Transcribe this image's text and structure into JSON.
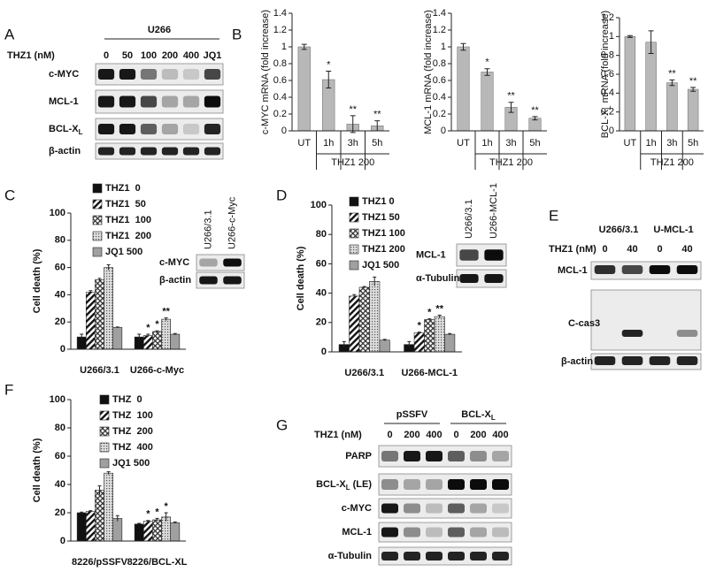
{
  "panel_letters": [
    "A",
    "B",
    "C",
    "D",
    "E",
    "F",
    "G"
  ],
  "chart_data": [
    {
      "type": "bar",
      "ylabel": "c-MYC mRNA (fold increase)",
      "categories": [
        "UT",
        "1h",
        "3h",
        "5h"
      ],
      "group_label": "THZ1 200",
      "values": [
        1.0,
        0.61,
        0.08,
        0.06
      ],
      "errors": [
        0.03,
        0.1,
        0.1,
        0.06
      ],
      "annotations": [
        null,
        "*",
        "**",
        "**"
      ],
      "color": "#b8b8b8",
      "ylim": [
        0,
        1.4
      ],
      "yticks": [
        0,
        0.2,
        0.4,
        0.6,
        0.8,
        1,
        1.2,
        1.4
      ]
    },
    {
      "type": "bar",
      "ylabel": "MCL-1 mRNA (fold increase)",
      "categories": [
        "UT",
        "1h",
        "3h",
        "5h"
      ],
      "group_label": "THZ1 200",
      "values": [
        1.0,
        0.7,
        0.28,
        0.15
      ],
      "errors": [
        0.04,
        0.04,
        0.06,
        0.02
      ],
      "annotations": [
        null,
        "*",
        "**",
        "**"
      ],
      "color": "#b8b8b8",
      "ylim": [
        0,
        1.4
      ],
      "yticks": [
        0,
        0.2,
        0.4,
        0.6,
        0.8,
        1,
        1.2,
        1.4
      ]
    },
    {
      "type": "bar",
      "ylabel": [
        {
          "text": "BCL-X"
        },
        {
          "text": "L",
          "sub": true
        },
        {
          "text": " mRNA (fold increase)"
        }
      ],
      "categories": [
        "UT",
        "1h",
        "3h",
        "5h"
      ],
      "group_label": "THZ1 200",
      "values": [
        1.0,
        0.94,
        0.51,
        0.44
      ],
      "errors": [
        0.01,
        0.12,
        0.03,
        0.02
      ],
      "annotations": [
        null,
        null,
        "**",
        "**"
      ],
      "color": "#b8b8b8",
      "ylim": [
        0,
        1.2
      ],
      "yticks": [
        0,
        0.2,
        0.4,
        0.6,
        0.8,
        1,
        1.2
      ]
    },
    {
      "type": "grouped_bar",
      "ylabel": "Cell death (%)",
      "categories": [
        "U266/3.1",
        "U266-c-Myc"
      ],
      "series": [
        {
          "name": "THZ1  0",
          "pattern": "solid",
          "color": "#111111",
          "values": [
            9,
            9
          ],
          "errors": [
            2,
            2
          ],
          "annotations": [
            null,
            null
          ]
        },
        {
          "name": "THZ1  50",
          "pattern": "diagonal",
          "color": "#111111",
          "values": [
            42,
            10
          ],
          "errors": [
            1,
            1
          ],
          "annotations": [
            null,
            "*"
          ]
        },
        {
          "name": "THZ1  100",
          "pattern": "cross",
          "color": "#333333",
          "values": [
            51,
            13
          ],
          "errors": [
            1,
            0.5
          ],
          "annotations": [
            null,
            "*"
          ]
        },
        {
          "name": "THZ1  200",
          "pattern": "dots",
          "color": "#555555",
          "values": [
            60,
            22
          ],
          "errors": [
            2,
            1
          ],
          "annotations": [
            null,
            "**"
          ]
        },
        {
          "name": "JQ1 500",
          "pattern": "solid",
          "color": "#a0a0a0",
          "values": [
            16,
            11
          ],
          "errors": [
            0.3,
            0.5
          ],
          "annotations": [
            null,
            null
          ]
        }
      ],
      "ylim": [
        0,
        100
      ],
      "yticks": [
        0,
        20,
        40,
        60,
        80,
        100
      ]
    },
    {
      "type": "grouped_bar",
      "ylabel": "Cell death (%)",
      "categories": [
        "U266/3.1",
        "U266-MCL-1"
      ],
      "series": [
        {
          "name": "THZ1 0",
          "pattern": "solid",
          "color": "#111111",
          "values": [
            5,
            5
          ],
          "errors": [
            2,
            2
          ],
          "annotations": [
            null,
            null
          ]
        },
        {
          "name": "THZ1 50",
          "pattern": "diagonal",
          "color": "#111111",
          "values": [
            38,
            13
          ],
          "errors": [
            1,
            0.5
          ],
          "annotations": [
            null,
            "*"
          ]
        },
        {
          "name": "THZ1 100",
          "pattern": "cross",
          "color": "#333333",
          "values": [
            44,
            22
          ],
          "errors": [
            0.5,
            0.5
          ],
          "annotations": [
            null,
            "*"
          ]
        },
        {
          "name": "THZ1 200",
          "pattern": "dots",
          "color": "#555555",
          "values": [
            48,
            24
          ],
          "errors": [
            3,
            1
          ],
          "annotations": [
            null,
            "**"
          ]
        },
        {
          "name": "JQ1 500",
          "pattern": "solid",
          "color": "#a0a0a0",
          "values": [
            8,
            12
          ],
          "errors": [
            0.5,
            0.5
          ],
          "annotations": [
            null,
            null
          ]
        }
      ],
      "ylim": [
        0,
        100
      ],
      "yticks": [
        0,
        20,
        40,
        60,
        80,
        100
      ]
    },
    {
      "type": "grouped_bar",
      "ylabel": "Cell death (%)",
      "categories": [
        "8226/pSSFV",
        "8226/BCL-XL"
      ],
      "series": [
        {
          "name": "THZ  0",
          "pattern": "solid",
          "color": "#111111",
          "values": [
            20,
            12
          ],
          "errors": [
            0.5,
            0.5
          ],
          "annotations": [
            null,
            null
          ]
        },
        {
          "name": "THZ  100",
          "pattern": "diagonal",
          "color": "#111111",
          "values": [
            21,
            14
          ],
          "errors": [
            0.5,
            0.5
          ],
          "annotations": [
            null,
            "*"
          ]
        },
        {
          "name": "THZ  200",
          "pattern": "cross",
          "color": "#333333",
          "values": [
            36,
            15
          ],
          "errors": [
            3,
            1
          ],
          "annotations": [
            null,
            "*"
          ]
        },
        {
          "name": "THZ  400",
          "pattern": "dots",
          "color": "#555555",
          "values": [
            48,
            17
          ],
          "errors": [
            1,
            3
          ],
          "annotations": [
            null,
            "*"
          ]
        },
        {
          "name": "JQ1 500",
          "pattern": "solid",
          "color": "#a0a0a0",
          "values": [
            16,
            13
          ],
          "errors": [
            2,
            0.5
          ],
          "annotations": [
            null,
            null
          ]
        }
      ],
      "ylim": [
        0,
        100
      ],
      "yticks": [
        0,
        20,
        40,
        60,
        80,
        100
      ]
    }
  ],
  "blots": {
    "A": {
      "title": "U266",
      "axis_label": "THZ1 (nM)",
      "lanes": [
        "0",
        "50",
        "100",
        "200",
        "400",
        "JQ1"
      ],
      "rows": [
        "c-MYC",
        "MCL-1",
        [
          {
            "text": "BCL-X"
          },
          {
            "text": "L",
            "sub": true
          }
        ],
        "β-actin"
      ]
    },
    "C_inset": {
      "lanes": [
        "U266/3.1",
        "U266-c-Myc"
      ],
      "rows": [
        "c-MYC",
        "β-actin"
      ]
    },
    "D_inset": {
      "lanes": [
        "U266/3.1",
        "U266-MCL-1"
      ],
      "rows": [
        "MCL-1",
        "α-Tubulin"
      ]
    },
    "E": {
      "groups": [
        "U266/3.1",
        "U-MCL-1"
      ],
      "axis_label": "THZ1 (nM)",
      "lanes": [
        "0",
        "40",
        "0",
        "40"
      ],
      "rows": [
        "MCL-1",
        "C-cas3",
        "β-actin"
      ]
    },
    "G": {
      "groups": [
        "pSSFV",
        [
          {
            "text": "BCL-X"
          },
          {
            "text": "L",
            "sub": true
          }
        ]
      ],
      "axis_label": "THZ1 (nM)",
      "lanes": [
        "0",
        "200",
        "400",
        "0",
        "200",
        "400"
      ],
      "rows": [
        "PARP",
        [
          {
            "text": "BCL-X"
          },
          {
            "text": "L",
            "sub": true
          },
          {
            "text": " (LE)"
          }
        ],
        "c-MYC",
        "MCL-1",
        "α-Tubulin"
      ]
    }
  }
}
